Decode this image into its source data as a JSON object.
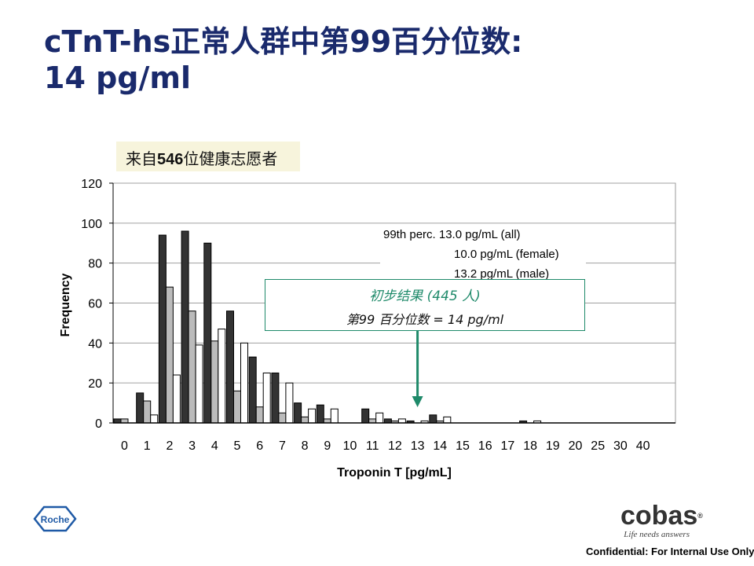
{
  "slide": {
    "title_line1": "cTnT-hs正常人群中第99百分位数:",
    "title_line2": "14 pg/ml",
    "source_prefix": "来自",
    "source_count": "546",
    "source_suffix": "位健康志愿者",
    "confidential": "Confidential: For Internal Use Only"
  },
  "annotation": {
    "line1": "初步结果 (445 人)",
    "line2": "第99 百分位数 = 14 pg/ml",
    "color": "#1f8a6a",
    "points_to_category": "13"
  },
  "legend_text": {
    "line1": "99th perc. 13.0 pg/mL (all)",
    "line2": "10.0 pg/mL (female)",
    "line3": "13.2 pg/mL (male)"
  },
  "logos": {
    "roche_text": "Roche",
    "cobas_text": "cobas",
    "cobas_reg": "®",
    "cobas_tagline": "Life needs answers"
  },
  "chart_data": {
    "type": "bar",
    "xlabel": "Troponin T  [pg/mL]",
    "ylabel": "Frequency",
    "ylim": [
      0,
      120
    ],
    "yticks": [
      0,
      20,
      40,
      60,
      80,
      100,
      120
    ],
    "grid": "horizontal",
    "categories": [
      "0",
      "1",
      "2",
      "3",
      "4",
      "5",
      "6",
      "7",
      "8",
      "9",
      "10",
      "11",
      "12",
      "13",
      "14",
      "15",
      "16",
      "17",
      "18",
      "19",
      "20",
      "25",
      "30",
      "40"
    ],
    "series": [
      {
        "color": "#333333",
        "values": [
          2,
          15,
          94,
          96,
          90,
          56,
          33,
          25,
          10,
          9,
          0,
          7,
          2,
          1,
          4,
          0,
          0,
          0,
          1,
          0,
          0,
          0,
          0,
          0
        ]
      },
      {
        "color": "#bbbbbb",
        "values": [
          2,
          11,
          68,
          56,
          41,
          16,
          8,
          5,
          3,
          2,
          0,
          2,
          1,
          0,
          1,
          0,
          0,
          0,
          0,
          0,
          0,
          0,
          0,
          0
        ]
      },
      {
        "color": "#ffffff",
        "values": [
          0,
          4,
          24,
          39,
          47,
          40,
          25,
          20,
          7,
          7,
          0,
          5,
          2,
          1,
          3,
          0,
          0,
          0,
          1,
          0,
          0,
          0,
          0,
          0
        ]
      }
    ]
  }
}
